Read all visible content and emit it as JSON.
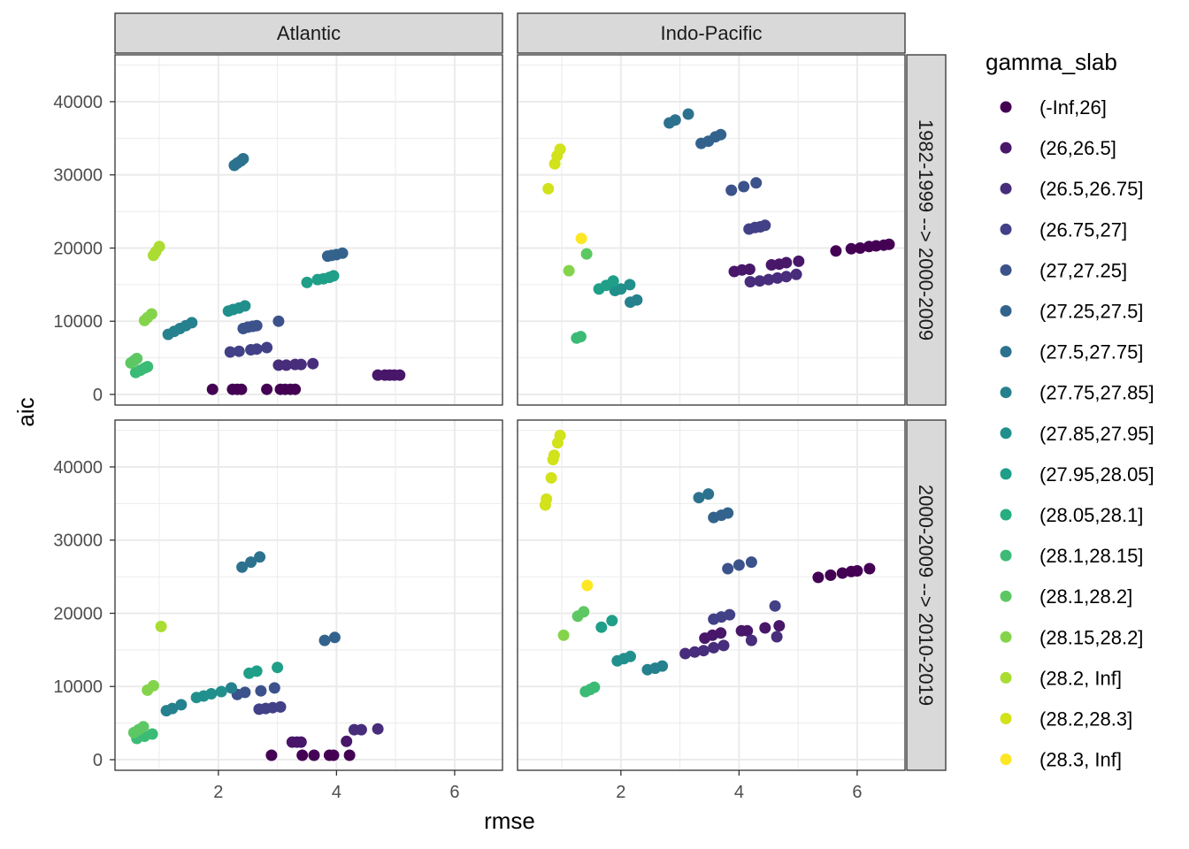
{
  "chart_data": {
    "type": "scatter",
    "xlabel": "rmse",
    "ylabel": "aic",
    "xlim": [
      0.25,
      6.81
    ],
    "ylim": [
      -1450,
      46400
    ],
    "x_ticks": [
      2,
      4,
      6
    ],
    "y_ticks": [
      0,
      10000,
      20000,
      30000,
      40000
    ],
    "grid": true,
    "facet_columns": [
      "Atlantic",
      "Indo-Pacific"
    ],
    "facet_rows": [
      "1982-1999 --> 2000-2009",
      "2000-2009 --> 2010-2019"
    ],
    "legend": {
      "title": "gamma_slab",
      "position": "right",
      "entries": [
        "(-Inf,26]",
        "(26,26.5]",
        "(26.5,26.75]",
        "(26.75,27]",
        "(27,27.25]",
        "(27.25,27.5]",
        "(27.5,27.75]",
        "(27.75,27.85]",
        "(27.85,27.95]",
        "(27.95,28.05]",
        "(28.05,28.1]",
        "(28.1,28.15]",
        "(28.1,28.2]",
        "(28.15,28.2]",
        "(28.2, Inf]",
        "(28.2,28.3]",
        "(28.3, Inf]"
      ],
      "colors": [
        "#440154",
        "#481769",
        "#472D7B",
        "#424086",
        "#3B528B",
        "#33638D",
        "#2C728E",
        "#26818E",
        "#21908C",
        "#1F9F88",
        "#27AD81",
        "#3BBB75",
        "#5DC863",
        "#84D44B",
        "#AADC32",
        "#D2E21B",
        "#FDE725"
      ]
    },
    "panels": [
      {
        "row": 0,
        "col": 0,
        "points": [
          [
            1.9,
            700,
            0
          ],
          [
            2.24,
            700,
            0
          ],
          [
            2.32,
            700,
            0
          ],
          [
            2.39,
            700,
            0
          ],
          [
            2.82,
            700,
            0
          ],
          [
            3.05,
            700,
            0
          ],
          [
            3.13,
            700,
            0
          ],
          [
            3.22,
            700,
            0
          ],
          [
            3.3,
            700,
            0
          ],
          [
            4.7,
            2650,
            1
          ],
          [
            4.82,
            2650,
            1
          ],
          [
            4.9,
            2650,
            1
          ],
          [
            4.98,
            2650,
            1
          ],
          [
            5.07,
            2650,
            1
          ],
          [
            3.02,
            4000,
            2
          ],
          [
            3.15,
            4000,
            2
          ],
          [
            3.3,
            4100,
            2
          ],
          [
            3.4,
            4100,
            2
          ],
          [
            3.6,
            4200,
            2
          ],
          [
            2.2,
            5800,
            3
          ],
          [
            2.35,
            5900,
            3
          ],
          [
            2.55,
            6100,
            3
          ],
          [
            2.65,
            6200,
            3
          ],
          [
            2.82,
            6400,
            3
          ],
          [
            2.42,
            9000,
            4
          ],
          [
            2.5,
            9200,
            4
          ],
          [
            2.58,
            9300,
            4
          ],
          [
            2.65,
            9400,
            4
          ],
          [
            3.02,
            10000,
            4
          ],
          [
            3.85,
            18900,
            5
          ],
          [
            3.92,
            19000,
            5
          ],
          [
            4.0,
            19100,
            5
          ],
          [
            4.1,
            19300,
            5
          ],
          [
            2.27,
            31300,
            6
          ],
          [
            2.32,
            31600,
            6
          ],
          [
            2.38,
            31900,
            6
          ],
          [
            2.42,
            32200,
            6
          ],
          [
            1.15,
            8200,
            7
          ],
          [
            1.25,
            8600,
            7
          ],
          [
            1.35,
            9000,
            7
          ],
          [
            1.45,
            9400,
            7
          ],
          [
            1.55,
            9800,
            7
          ],
          [
            2.17,
            11400,
            8
          ],
          [
            2.25,
            11600,
            8
          ],
          [
            2.35,
            11800,
            8
          ],
          [
            2.45,
            12100,
            8
          ],
          [
            3.5,
            15300,
            9
          ],
          [
            3.68,
            15700,
            9
          ],
          [
            3.78,
            15800,
            9
          ],
          [
            3.88,
            16000,
            9
          ],
          [
            3.95,
            16200,
            9
          ],
          [
            0.6,
            3000,
            11
          ],
          [
            0.68,
            3300,
            11
          ],
          [
            0.75,
            3600,
            11
          ],
          [
            0.8,
            3800,
            11
          ],
          [
            0.52,
            4300,
            12
          ],
          [
            0.57,
            4600,
            12
          ],
          [
            0.62,
            4900,
            12
          ],
          [
            0.75,
            10100,
            13
          ],
          [
            0.8,
            10500,
            13
          ],
          [
            0.87,
            11000,
            13
          ],
          [
            0.9,
            19000,
            14
          ],
          [
            0.94,
            19500,
            14
          ],
          [
            1.0,
            20200,
            14
          ]
        ]
      },
      {
        "row": 0,
        "col": 1,
        "points": [
          [
            5.64,
            19600,
            0
          ],
          [
            5.9,
            19900,
            0
          ],
          [
            6.05,
            20000,
            0
          ],
          [
            6.2,
            20200,
            0
          ],
          [
            6.32,
            20300,
            0
          ],
          [
            6.45,
            20400,
            0
          ],
          [
            6.54,
            20500,
            0
          ],
          [
            3.92,
            16800,
            1
          ],
          [
            4.05,
            17000,
            1
          ],
          [
            4.18,
            17100,
            1
          ],
          [
            4.55,
            17700,
            1
          ],
          [
            4.68,
            17800,
            1
          ],
          [
            4.8,
            18000,
            1
          ],
          [
            5.01,
            18200,
            1
          ],
          [
            4.19,
            15400,
            2
          ],
          [
            4.35,
            15500,
            2
          ],
          [
            4.5,
            15700,
            2
          ],
          [
            4.65,
            15900,
            2
          ],
          [
            4.8,
            16100,
            2
          ],
          [
            4.97,
            16400,
            2
          ],
          [
            4.17,
            22600,
            3
          ],
          [
            4.27,
            22800,
            3
          ],
          [
            4.36,
            22900,
            3
          ],
          [
            4.44,
            23100,
            3
          ],
          [
            3.87,
            27900,
            4
          ],
          [
            4.08,
            28400,
            4
          ],
          [
            4.29,
            28900,
            4
          ],
          [
            3.36,
            34300,
            5
          ],
          [
            3.48,
            34600,
            5
          ],
          [
            3.6,
            35200,
            5
          ],
          [
            3.69,
            35500,
            5
          ],
          [
            2.82,
            37100,
            6
          ],
          [
            2.92,
            37500,
            6
          ],
          [
            3.14,
            38300,
            6
          ],
          [
            2.16,
            12600,
            7
          ],
          [
            2.27,
            12900,
            7
          ],
          [
            1.9,
            14200,
            8
          ],
          [
            2.0,
            14400,
            8
          ],
          [
            2.15,
            15000,
            8
          ],
          [
            1.63,
            14400,
            9
          ],
          [
            1.75,
            14900,
            9
          ],
          [
            1.87,
            15500,
            9
          ],
          [
            1.25,
            7700,
            11
          ],
          [
            1.32,
            7900,
            11
          ],
          [
            1.42,
            19200,
            12
          ],
          [
            1.12,
            16900,
            13
          ],
          [
            1.33,
            21300,
            16
          ],
          [
            0.77,
            28100,
            15
          ],
          [
            0.88,
            31500,
            15
          ],
          [
            0.92,
            32600,
            15
          ],
          [
            0.97,
            33500,
            15
          ]
        ]
      },
      {
        "row": 1,
        "col": 0,
        "points": [
          [
            2.9,
            600,
            0
          ],
          [
            3.42,
            600,
            0
          ],
          [
            3.62,
            600,
            0
          ],
          [
            3.88,
            600,
            0
          ],
          [
            3.95,
            600,
            0
          ],
          [
            4.22,
            600,
            0
          ],
          [
            3.25,
            2400,
            1
          ],
          [
            3.33,
            2400,
            1
          ],
          [
            3.4,
            2400,
            1
          ],
          [
            4.17,
            2500,
            1
          ],
          [
            4.3,
            4100,
            2
          ],
          [
            4.42,
            4100,
            2
          ],
          [
            4.7,
            4200,
            2
          ],
          [
            2.69,
            6900,
            3
          ],
          [
            2.8,
            7000,
            3
          ],
          [
            2.92,
            7100,
            3
          ],
          [
            3.05,
            7200,
            3
          ],
          [
            2.32,
            8900,
            4
          ],
          [
            2.45,
            9200,
            4
          ],
          [
            2.72,
            9400,
            4
          ],
          [
            2.95,
            9800,
            4
          ],
          [
            3.8,
            16300,
            5
          ],
          [
            3.97,
            16700,
            5
          ],
          [
            2.4,
            26300,
            6
          ],
          [
            2.55,
            27000,
            6
          ],
          [
            2.7,
            27700,
            6
          ],
          [
            1.12,
            6700,
            7
          ],
          [
            1.22,
            7000,
            7
          ],
          [
            1.37,
            7500,
            7
          ],
          [
            2.22,
            9800,
            7
          ],
          [
            1.63,
            8500,
            8
          ],
          [
            1.75,
            8700,
            8
          ],
          [
            1.88,
            9000,
            8
          ],
          [
            2.05,
            9300,
            8
          ],
          [
            2.52,
            11800,
            9
          ],
          [
            2.65,
            12100,
            9
          ],
          [
            3.0,
            12600,
            9
          ],
          [
            0.62,
            2900,
            11
          ],
          [
            0.75,
            3200,
            11
          ],
          [
            0.88,
            3500,
            11
          ],
          [
            0.57,
            3700,
            12
          ],
          [
            0.65,
            4100,
            12
          ],
          [
            0.73,
            4500,
            12
          ],
          [
            0.8,
            9500,
            13
          ],
          [
            0.9,
            10100,
            13
          ],
          [
            1.03,
            18200,
            14
          ]
        ]
      },
      {
        "row": 1,
        "col": 1,
        "points": [
          [
            5.34,
            24900,
            0
          ],
          [
            5.55,
            25200,
            0
          ],
          [
            5.75,
            25500,
            0
          ],
          [
            5.9,
            25700,
            0
          ],
          [
            6.0,
            25800,
            0
          ],
          [
            6.21,
            26100,
            0
          ],
          [
            3.42,
            16600,
            1
          ],
          [
            3.55,
            17000,
            1
          ],
          [
            3.69,
            17300,
            1
          ],
          [
            4.04,
            17600,
            1
          ],
          [
            4.14,
            17600,
            1
          ],
          [
            4.44,
            18000,
            1
          ],
          [
            4.68,
            18300,
            1
          ],
          [
            3.09,
            14500,
            2
          ],
          [
            3.25,
            14700,
            2
          ],
          [
            3.4,
            14900,
            2
          ],
          [
            3.57,
            15300,
            2
          ],
          [
            3.74,
            15600,
            2
          ],
          [
            4.21,
            16300,
            2
          ],
          [
            4.64,
            16800,
            2
          ],
          [
            3.57,
            19200,
            3
          ],
          [
            3.7,
            19500,
            3
          ],
          [
            3.84,
            19800,
            3
          ],
          [
            4.61,
            21000,
            3
          ],
          [
            3.81,
            26100,
            4
          ],
          [
            4.0,
            26600,
            4
          ],
          [
            4.21,
            27000,
            4
          ],
          [
            3.57,
            33100,
            5
          ],
          [
            3.7,
            33400,
            5
          ],
          [
            3.81,
            33700,
            5
          ],
          [
            3.32,
            35800,
            6
          ],
          [
            3.48,
            36300,
            6
          ],
          [
            2.45,
            12300,
            7
          ],
          [
            2.58,
            12500,
            7
          ],
          [
            2.7,
            12800,
            7
          ],
          [
            1.94,
            13500,
            8
          ],
          [
            2.05,
            13800,
            8
          ],
          [
            2.16,
            14100,
            8
          ],
          [
            1.67,
            18100,
            9
          ],
          [
            1.85,
            19000,
            9
          ],
          [
            1.4,
            9300,
            11
          ],
          [
            1.48,
            9600,
            11
          ],
          [
            1.55,
            9900,
            11
          ],
          [
            1.27,
            19600,
            12
          ],
          [
            1.37,
            20200,
            12
          ],
          [
            1.03,
            17000,
            13
          ],
          [
            1.43,
            23800,
            16
          ],
          [
            0.72,
            34800,
            15
          ],
          [
            0.74,
            35600,
            15
          ],
          [
            0.82,
            38500,
            15
          ],
          [
            0.85,
            41000,
            15
          ],
          [
            0.87,
            41600,
            15
          ],
          [
            0.93,
            43300,
            15
          ],
          [
            0.97,
            44300,
            15
          ]
        ]
      }
    ]
  }
}
